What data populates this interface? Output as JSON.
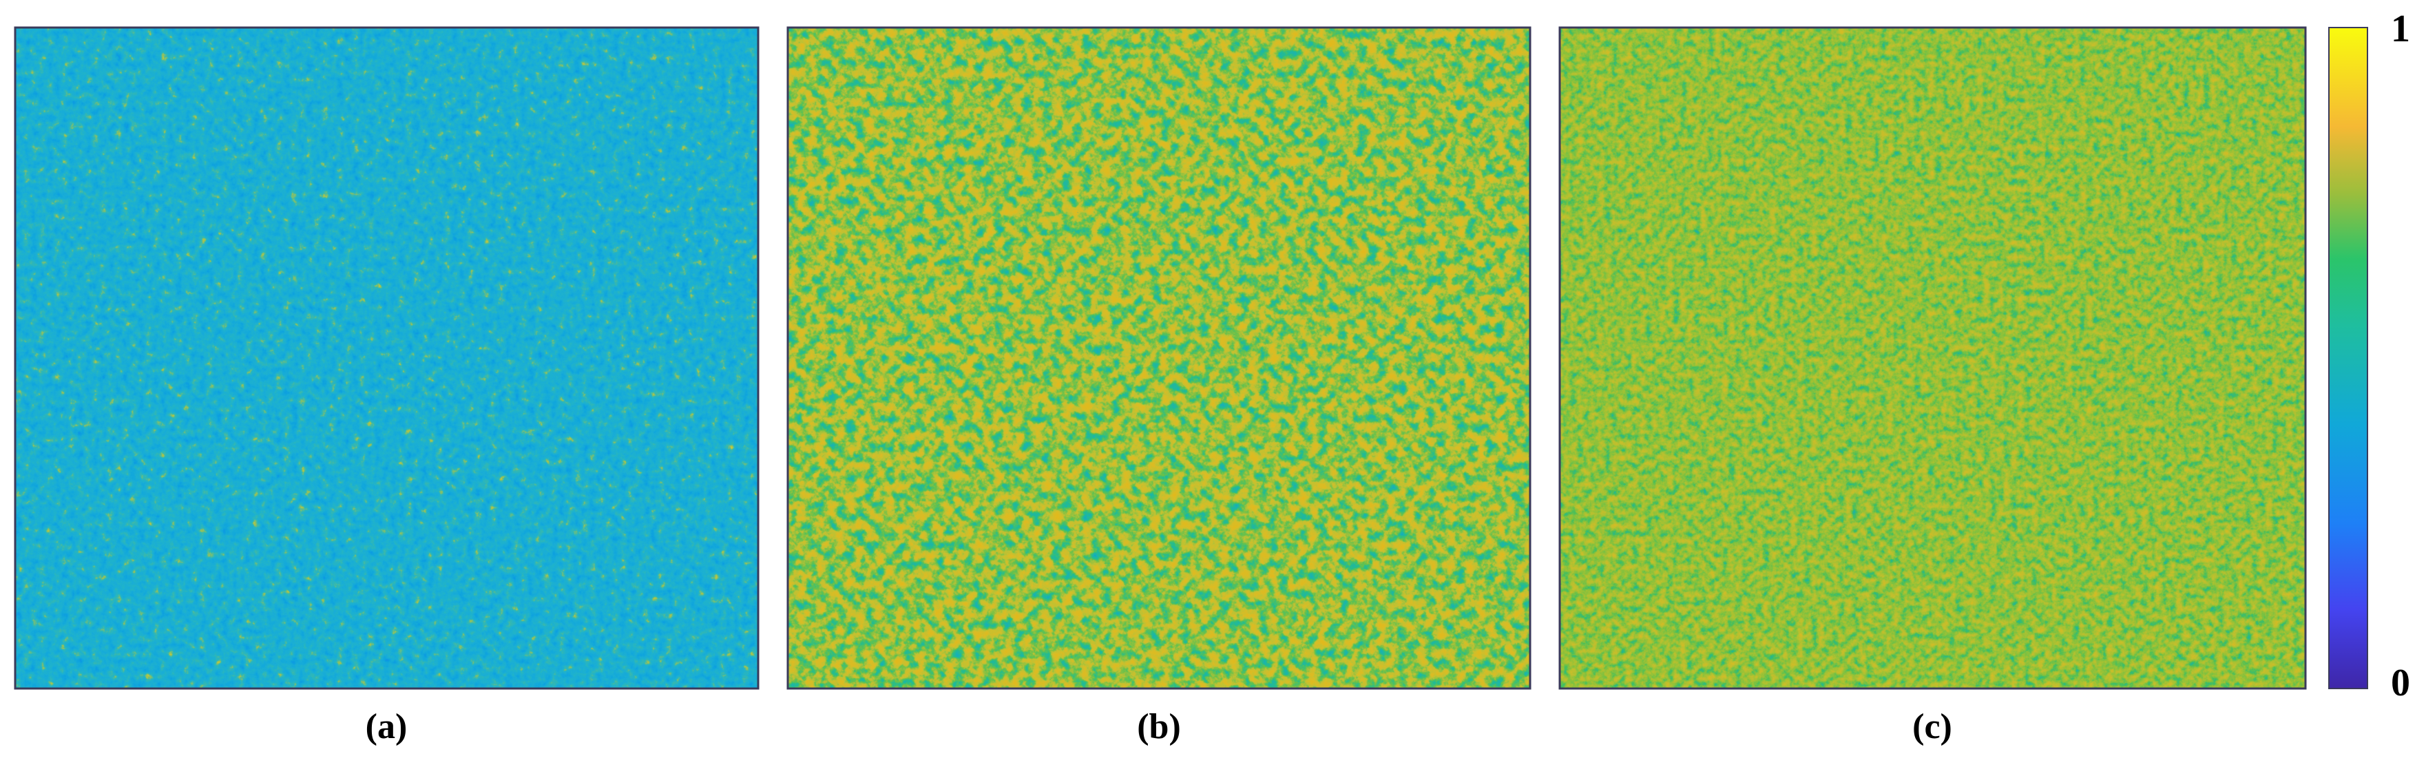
{
  "panels": [
    {
      "label": "(a)"
    },
    {
      "label": "(b)"
    },
    {
      "label": "(c)"
    }
  ],
  "colorbar": {
    "ticks": [
      0,
      1
    ]
  }
}
